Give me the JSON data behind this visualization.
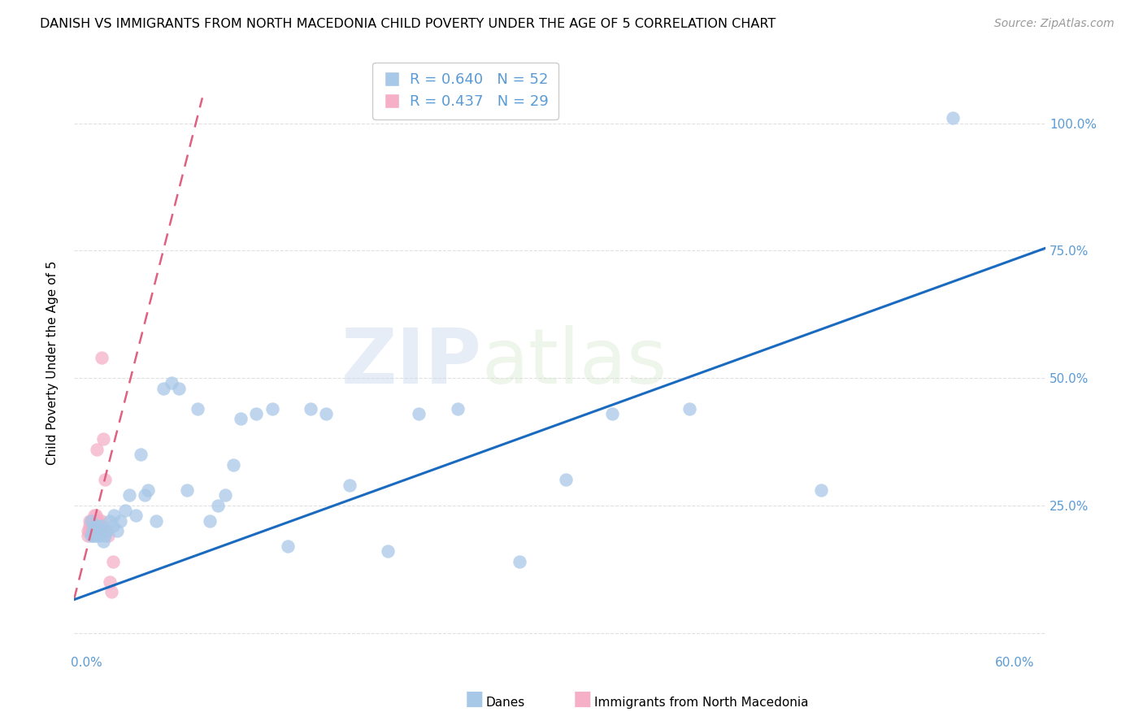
{
  "title": "DANISH VS IMMIGRANTS FROM NORTH MACEDONIA CHILD POVERTY UNDER THE AGE OF 5 CORRELATION CHART",
  "source": "Source: ZipAtlas.com",
  "ylabel": "Child Poverty Under the Age of 5",
  "xlim": [
    -0.008,
    0.62
  ],
  "ylim": [
    -0.04,
    1.1
  ],
  "xticks": [
    0.0,
    0.1,
    0.2,
    0.3,
    0.4,
    0.5,
    0.6
  ],
  "xticklabels": [
    "0.0%",
    "",
    "",
    "",
    "",
    "",
    "60.0%"
  ],
  "yticks": [
    0.0,
    0.25,
    0.5,
    0.75,
    1.0
  ],
  "yticklabels_right": [
    "",
    "25.0%",
    "50.0%",
    "75.0%",
    "100.0%"
  ],
  "danes_color": "#a8c8e8",
  "immigrants_color": "#f5b0c8",
  "danes_line_color": "#1a6bbf",
  "immigrants_line_color": "#e06080",
  "danes_label": "Danes",
  "immigrants_label": "Immigrants from North Macedonia",
  "danes_R": "0.640",
  "danes_N": "52",
  "immigrants_R": "0.437",
  "immigrants_N": "29",
  "watermark_zip": "ZIP",
  "watermark_atlas": "atlas",
  "danes_scatter_x": [
    0.003,
    0.003,
    0.004,
    0.004,
    0.005,
    0.005,
    0.006,
    0.007,
    0.007,
    0.008,
    0.009,
    0.01,
    0.011,
    0.012,
    0.013,
    0.015,
    0.017,
    0.018,
    0.02,
    0.022,
    0.025,
    0.028,
    0.032,
    0.035,
    0.038,
    0.04,
    0.045,
    0.05,
    0.055,
    0.06,
    0.065,
    0.072,
    0.08,
    0.085,
    0.09,
    0.095,
    0.1,
    0.11,
    0.12,
    0.13,
    0.145,
    0.155,
    0.17,
    0.195,
    0.215,
    0.24,
    0.28,
    0.31,
    0.34,
    0.39,
    0.475,
    0.56
  ],
  "danes_scatter_y": [
    0.19,
    0.22,
    0.19,
    0.2,
    0.19,
    0.21,
    0.2,
    0.19,
    0.21,
    0.2,
    0.19,
    0.21,
    0.18,
    0.19,
    0.2,
    0.22,
    0.21,
    0.23,
    0.2,
    0.22,
    0.24,
    0.27,
    0.23,
    0.35,
    0.27,
    0.28,
    0.22,
    0.48,
    0.49,
    0.48,
    0.28,
    0.44,
    0.22,
    0.25,
    0.27,
    0.33,
    0.42,
    0.43,
    0.44,
    0.17,
    0.44,
    0.43,
    0.29,
    0.16,
    0.43,
    0.44,
    0.14,
    0.3,
    0.43,
    0.44,
    0.28,
    1.01
  ],
  "immigrants_scatter_x": [
    0.001,
    0.001,
    0.002,
    0.002,
    0.002,
    0.003,
    0.003,
    0.004,
    0.004,
    0.005,
    0.005,
    0.005,
    0.006,
    0.006,
    0.007,
    0.007,
    0.008,
    0.008,
    0.009,
    0.009,
    0.01,
    0.01,
    0.011,
    0.012,
    0.013,
    0.014,
    0.015,
    0.016,
    0.017
  ],
  "immigrants_scatter_y": [
    0.19,
    0.2,
    0.2,
    0.21,
    0.22,
    0.21,
    0.22,
    0.21,
    0.22,
    0.21,
    0.22,
    0.23,
    0.22,
    0.23,
    0.22,
    0.36,
    0.21,
    0.22,
    0.2,
    0.21,
    0.54,
    0.22,
    0.38,
    0.3,
    0.2,
    0.19,
    0.1,
    0.08,
    0.14
  ],
  "danes_line_x": [
    -0.008,
    0.62
  ],
  "danes_line_y": [
    0.065,
    0.755
  ],
  "immigrants_line_x": [
    -0.008,
    0.075
  ],
  "immigrants_line_y": [
    0.065,
    1.05
  ],
  "background_color": "#ffffff",
  "grid_color": "#e0e0e0",
  "title_fontsize": 11.5,
  "axis_label_fontsize": 11,
  "tick_fontsize": 11,
  "source_fontsize": 10
}
